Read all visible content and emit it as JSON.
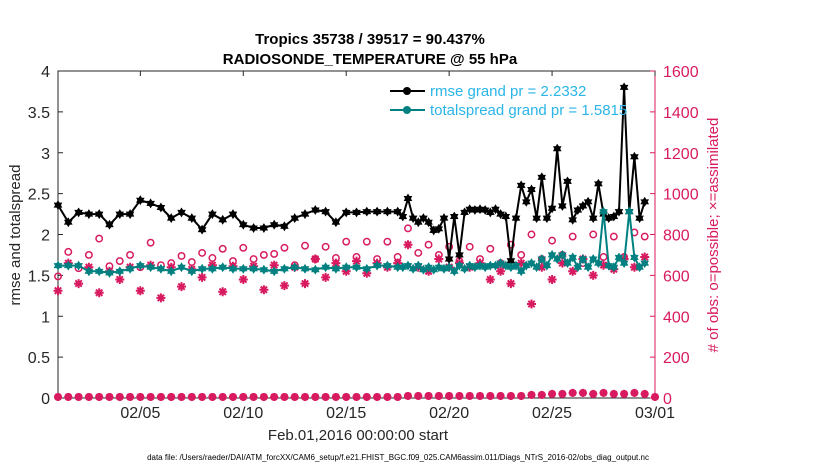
{
  "chart_data": {
    "type": "line",
    "title_line1": "Tropics 35738 / 39517 = 90.437%",
    "title_line2": "RADIOSONDE_TEMPERATURE @ 55 hPa",
    "xlabel": "Feb.01,2016 00:00:00 start",
    "ylabel_left": "rmse and totalspread",
    "ylabel_right": "# of obs: o=possible; ×=assimilated",
    "footnote": "data file: /Users/raeder/DAI/ATM_forcXX/CAM6_setup/f.e21.FHIST_BGC.f09_025.CAM6assim.011/Diags_NTrS_2016-02/obs_diag_output.nc",
    "xlim": [
      1,
      30
    ],
    "ylim_left": [
      0,
      4
    ],
    "ylim_right": [
      0,
      1600
    ],
    "x_ticks": [
      5,
      10,
      15,
      20,
      25,
      30
    ],
    "x_tick_labels": [
      "02/05",
      "02/10",
      "02/15",
      "02/20",
      "02/25",
      "03/01"
    ],
    "y_left_ticks": [
      0,
      0.5,
      1,
      1.5,
      2,
      2.5,
      3,
      3.5,
      4
    ],
    "y_left_tick_labels": [
      "0",
      "0.5",
      "1",
      "1.5",
      "2",
      "2.5",
      "3",
      "3.5",
      "4"
    ],
    "y_right_ticks": [
      0,
      200,
      400,
      600,
      800,
      1000,
      1200,
      1400,
      1600
    ],
    "y_right_tick_labels": [
      "0",
      "200",
      "400",
      "600",
      "800",
      "1000",
      "1200",
      "1400",
      "1600"
    ],
    "colors": {
      "rmse": "#000000",
      "totalspread": "#008080",
      "obs": "#d81b60",
      "legend_text": "#2bb5e8",
      "left_axis": "#262626",
      "right_axis": "#d81b60"
    },
    "legend": {
      "placement": "top-right",
      "entries": [
        "rmse grand pr = 2.2332",
        "totalspread grand pr = 1.5815"
      ]
    },
    "x": [
      1,
      1.5,
      2,
      2.5,
      3,
      3.5,
      4,
      4.5,
      5,
      5.5,
      6,
      6.5,
      7,
      7.5,
      8,
      8.5,
      9,
      9.5,
      10,
      10.5,
      11,
      11.5,
      12,
      12.5,
      13,
      13.5,
      14,
      14.5,
      15,
      15.5,
      16,
      16.5,
      17,
      17.5,
      17.75,
      18,
      18.25,
      18.5,
      18.75,
      19,
      19.25,
      19.5,
      19.75,
      20,
      20.25,
      20.5,
      20.75,
      21,
      21.25,
      21.5,
      21.75,
      22,
      22.25,
      22.5,
      22.75,
      23,
      23.25,
      23.5,
      23.75,
      24,
      24.25,
      24.5,
      24.75,
      25,
      25.25,
      25.5,
      25.75,
      26,
      26.25,
      26.5,
      26.75,
      27,
      27.25,
      27.5,
      27.75,
      28,
      28.25,
      28.5,
      28.75,
      29,
      29.25,
      29.5
    ],
    "series": [
      {
        "name": "rmse",
        "axis": "left",
        "values": [
          2.36,
          2.15,
          2.27,
          2.25,
          2.25,
          2.12,
          2.25,
          2.25,
          2.42,
          2.38,
          2.33,
          2.2,
          2.27,
          2.2,
          2.06,
          2.25,
          2.18,
          2.25,
          2.12,
          2.08,
          2.08,
          2.12,
          2.1,
          2.2,
          2.25,
          2.3,
          2.28,
          2.15,
          2.27,
          2.27,
          2.28,
          2.28,
          2.28,
          2.28,
          2.22,
          2.44,
          2.2,
          2.15,
          2.2,
          2.15,
          2.05,
          2.07,
          2.2,
          1.7,
          2.22,
          1.75,
          2.27,
          2.31,
          2.3,
          2.31,
          2.3,
          2.27,
          2.31,
          2.25,
          2.22,
          1.68,
          2.2,
          2.6,
          2.4,
          2.55,
          2.2,
          2.7,
          2.2,
          2.32,
          3.05,
          2.35,
          2.65,
          2.18,
          2.3,
          2.35,
          2.4,
          2.2,
          2.62,
          2.25,
          2.2,
          2.22,
          2.28,
          3.8,
          2.28,
          2.95,
          2.2,
          2.4
        ],
        "marker": "hexagram"
      },
      {
        "name": "totalspread",
        "axis": "left",
        "values": [
          1.62,
          1.62,
          1.62,
          1.55,
          1.55,
          1.53,
          1.55,
          1.58,
          1.62,
          1.6,
          1.58,
          1.55,
          1.6,
          1.55,
          1.58,
          1.58,
          1.6,
          1.58,
          1.58,
          1.58,
          1.57,
          1.55,
          1.58,
          1.6,
          1.58,
          1.57,
          1.6,
          1.58,
          1.6,
          1.6,
          1.58,
          1.62,
          1.62,
          1.6,
          1.6,
          1.62,
          1.58,
          1.62,
          1.57,
          1.6,
          1.57,
          1.6,
          1.58,
          1.6,
          1.55,
          1.62,
          1.58,
          1.62,
          1.6,
          1.62,
          1.6,
          1.62,
          1.62,
          1.65,
          1.62,
          1.6,
          1.62,
          1.55,
          1.62,
          1.65,
          1.6,
          1.7,
          1.62,
          1.75,
          1.7,
          1.75,
          1.65,
          1.72,
          1.6,
          1.7,
          1.6,
          1.7,
          1.65,
          2.28,
          1.62,
          1.6,
          1.72,
          1.65,
          2.28,
          1.72,
          1.6,
          1.65
        ],
        "marker": "hexagram"
      },
      {
        "name": "obs possible",
        "axis": "right",
        "marker": "circle",
        "x": [
          1,
          1.5,
          2,
          2.5,
          3,
          3.5,
          4,
          4.5,
          5,
          5.5,
          6,
          6.5,
          7,
          7.5,
          8,
          8.5,
          9,
          9.5,
          10,
          10.5,
          11,
          11.5,
          12,
          12.5,
          13,
          13.5,
          14,
          14.5,
          15,
          15.5,
          16,
          16.5,
          17,
          17.5,
          18,
          18.5,
          19,
          19.5,
          20,
          20.5,
          21,
          21.5,
          22,
          22.5,
          23,
          23.5,
          24,
          24.5,
          25,
          25.5,
          26,
          26.5,
          27,
          27.5,
          28,
          28.5,
          29,
          29.5
        ],
        "values": [
          595,
          715,
          635,
          700,
          780,
          645,
          670,
          700,
          640,
          760,
          650,
          660,
          695,
          665,
          710,
          685,
          730,
          670,
          735,
          680,
          700,
          705,
          735,
          650,
          745,
          680,
          740,
          685,
          765,
          690,
          765,
          680,
          765,
          690,
          830,
          710,
          750,
          700,
          740,
          670,
          740,
          680,
          730,
          660,
          750,
          700,
          800,
          680,
          770,
          700,
          790,
          660,
          800,
          690,
          790,
          690,
          810,
          790
        ]
      },
      {
        "name": "obs assimilated",
        "axis": "right",
        "marker": "asterisk",
        "x": [
          1,
          1.5,
          2,
          2.5,
          3,
          3.5,
          4,
          4.5,
          5,
          5.5,
          6,
          6.5,
          7,
          7.5,
          8,
          8.5,
          9,
          9.5,
          10,
          10.5,
          11,
          11.5,
          12,
          12.5,
          13,
          13.5,
          14,
          14.5,
          15,
          15.5,
          16,
          16.5,
          17,
          17.5,
          18,
          18.5,
          19,
          19.5,
          20,
          20.5,
          21,
          21.5,
          22,
          22.5,
          23,
          23.5,
          24,
          24.5,
          25,
          25.5,
          26,
          26.5,
          27,
          27.5,
          28,
          28.5,
          29,
          29.5
        ],
        "values": [
          525,
          660,
          560,
          640,
          515,
          620,
          580,
          640,
          525,
          650,
          490,
          640,
          545,
          630,
          590,
          650,
          520,
          645,
          580,
          645,
          530,
          650,
          550,
          640,
          560,
          680,
          590,
          660,
          620,
          670,
          610,
          660,
          640,
          660,
          750,
          640,
          620,
          680,
          640,
          660,
          640,
          660,
          580,
          620,
          560,
          660,
          460,
          640,
          580,
          660,
          620,
          680,
          600,
          650,
          630,
          680,
          640,
          690
        ],
        "ground_values_note": "near zero"
      },
      {
        "name": "obs bottom row (possible)",
        "axis": "right",
        "marker": "circle",
        "x": [
          1,
          1.5,
          2,
          2.5,
          3,
          3.5,
          4,
          4.5,
          5,
          5.5,
          6,
          6.5,
          7,
          7.5,
          8,
          8.5,
          9,
          9.5,
          10,
          10.5,
          11,
          11.5,
          12,
          12.5,
          13,
          13.5,
          14,
          14.5,
          15,
          15.5,
          16,
          16.5,
          17,
          17.5,
          18,
          18.5,
          19,
          19.5,
          20,
          20.5,
          21,
          21.5,
          22,
          22.5,
          23,
          23.5,
          24,
          24.5,
          25,
          25.5,
          26,
          26.5,
          27,
          27.5,
          28,
          28.5,
          29,
          29.5,
          30
        ],
        "values": [
          5,
          5,
          5,
          5,
          5,
          5,
          5,
          5,
          5,
          5,
          5,
          5,
          5,
          5,
          5,
          5,
          5,
          5,
          5,
          5,
          5,
          5,
          5,
          5,
          5,
          5,
          5,
          5,
          5,
          5,
          5,
          5,
          5,
          5,
          10,
          10,
          10,
          10,
          10,
          10,
          10,
          10,
          10,
          10,
          10,
          10,
          15,
          15,
          20,
          20,
          25,
          25,
          20,
          25,
          20,
          20,
          25,
          20,
          5
        ]
      }
    ]
  }
}
